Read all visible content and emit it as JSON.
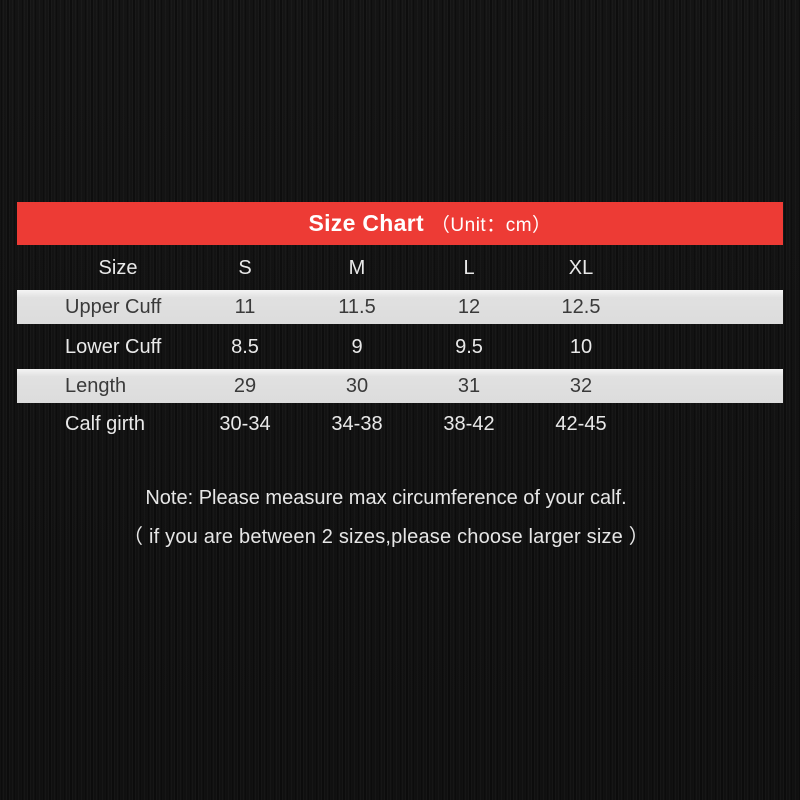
{
  "chart_data": {
    "type": "table",
    "title": "Size Chart",
    "unit_label": "（Unit：cm）",
    "columns": [
      "Size",
      "S",
      "M",
      "L",
      "XL"
    ],
    "rows": [
      {
        "label": "Upper Cuff",
        "values": [
          "11",
          "11.5",
          "12",
          "12.5"
        ]
      },
      {
        "label": "Lower Cuff",
        "values": [
          "8.5",
          "9",
          "9.5",
          "10"
        ]
      },
      {
        "label": "Length",
        "values": [
          "29",
          "30",
          "31",
          "32"
        ]
      },
      {
        "label": "Calf girth",
        "values": [
          "30-34",
          "34-38",
          "38-42",
          "42-45"
        ]
      }
    ],
    "notes": [
      "Note: Please measure max circumference of your calf.",
      "（ if you are between 2 sizes,please choose larger size ）"
    ],
    "layout_hints": {
      "striped_rows": true,
      "stripe_pattern": [
        "gray",
        "dark",
        "gray",
        "dark"
      ],
      "header_on_dark_background": true
    }
  },
  "colors": {
    "accent_red": "#ed3b35",
    "row_gray": "#e1e1e1",
    "background": "#121212",
    "text_light": "#e9e9e9",
    "text_dark": "#3a3a3a"
  }
}
